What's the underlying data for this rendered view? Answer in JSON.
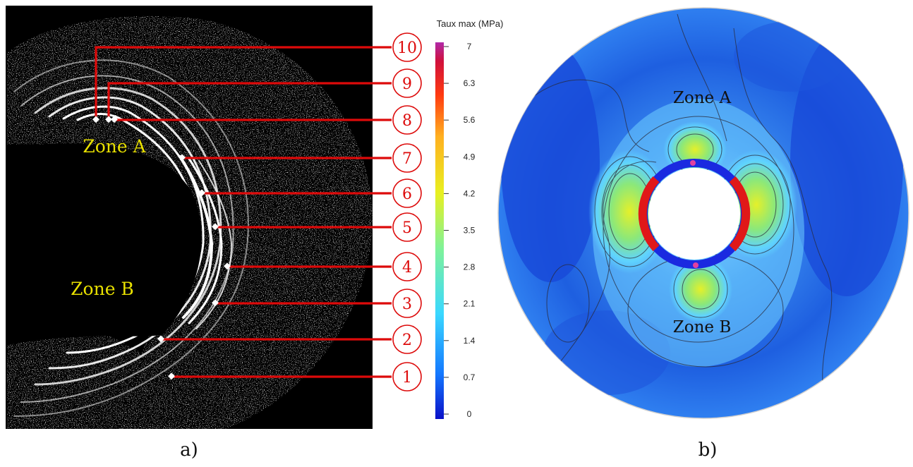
{
  "panel_a": {
    "caption": "a)",
    "zone_a_label": "Zone A",
    "zone_b_label": "Zone B",
    "points": [
      "1",
      "2",
      "3",
      "4",
      "5",
      "6",
      "7",
      "8",
      "9",
      "10"
    ]
  },
  "colorbar": {
    "title": "Taux max (MPa)",
    "ticks": [
      "7",
      "6.3",
      "5.6",
      "4.9",
      "4.2",
      "3.5",
      "2.8",
      "2.1",
      "1.4",
      "0.7",
      "0"
    ],
    "colors": [
      "#0a10c8",
      "#1478ff",
      "#3ad8ff",
      "#7ef29a",
      "#e8f020",
      "#ffb020",
      "#ff3a10",
      "#d0103c",
      "#b02aa8"
    ]
  },
  "panel_b": {
    "caption": "b)",
    "zone_a_label": "Zone A",
    "zone_b_label": "Zone B"
  }
}
